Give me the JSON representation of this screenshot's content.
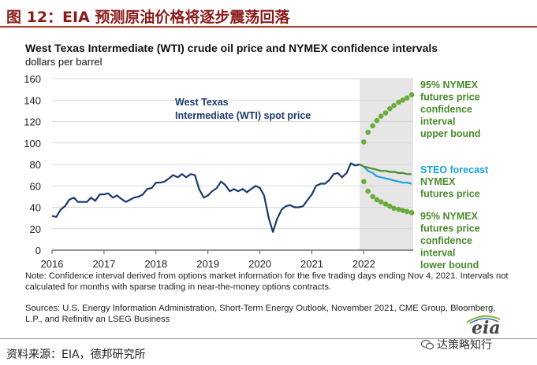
{
  "header": {
    "title": "图 12：EIA 预测原油价格将逐步震荡回落"
  },
  "chart_data": {
    "type": "line",
    "title": "West Texas Intermediate (WTI) crude oil price and NYMEX confidence intervals",
    "ylabel": "dollars per barrel",
    "ylim": [
      0,
      160
    ],
    "yticks": [
      0,
      20,
      40,
      60,
      80,
      100,
      120,
      140,
      160
    ],
    "xlim": [
      2016,
      2022.95
    ],
    "xticks": [
      2016,
      2017,
      2018,
      2019,
      2020,
      2021,
      2022
    ],
    "xtick_labels": [
      "2016",
      "2017",
      "2018",
      "2019",
      "2020",
      "2021",
      "2022"
    ],
    "forecast_start": 2021.92,
    "series": [
      {
        "name": "West Texas Intermediate (WTI) spot price",
        "color": "#1b3a6b",
        "style": "solid",
        "x": [
          2016.0,
          2016.08,
          2016.17,
          2016.25,
          2016.33,
          2016.42,
          2016.5,
          2016.58,
          2016.67,
          2016.75,
          2016.83,
          2016.92,
          2017.0,
          2017.08,
          2017.17,
          2017.25,
          2017.33,
          2017.42,
          2017.5,
          2017.58,
          2017.67,
          2017.75,
          2017.83,
          2017.92,
          2018.0,
          2018.08,
          2018.17,
          2018.25,
          2018.33,
          2018.42,
          2018.5,
          2018.58,
          2018.67,
          2018.75,
          2018.83,
          2018.92,
          2019.0,
          2019.08,
          2019.17,
          2019.25,
          2019.33,
          2019.42,
          2019.5,
          2019.58,
          2019.67,
          2019.75,
          2019.83,
          2019.92,
          2020.0,
          2020.08,
          2020.17,
          2020.25,
          2020.33,
          2020.42,
          2020.5,
          2020.58,
          2020.67,
          2020.75,
          2020.83,
          2020.92,
          2021.0,
          2021.08,
          2021.17,
          2021.25,
          2021.33,
          2021.42,
          2021.5,
          2021.58,
          2021.67,
          2021.75,
          2021.83,
          2021.92
        ],
        "values": [
          32,
          31,
          38,
          41,
          47,
          49,
          45,
          45,
          45,
          49,
          46,
          52,
          52,
          53,
          49,
          51,
          48,
          45,
          47,
          49,
          50,
          52,
          57,
          58,
          63,
          63,
          64,
          67,
          70,
          68,
          71,
          68,
          71,
          70,
          57,
          49,
          51,
          55,
          58,
          64,
          61,
          55,
          57,
          55,
          57,
          54,
          57,
          60,
          58,
          51,
          30,
          17,
          29,
          38,
          41,
          42,
          40,
          40,
          41,
          47,
          52,
          60,
          62,
          62,
          65,
          71,
          72,
          68,
          72,
          81,
          79,
          80
        ]
      },
      {
        "name": "STEO forecast",
        "color": "#1ba3dc",
        "style": "solid",
        "x": [
          2021.92,
          2022.0,
          2022.08,
          2022.17,
          2022.25,
          2022.33,
          2022.42,
          2022.5,
          2022.58,
          2022.67,
          2022.75,
          2022.83,
          2022.92
        ],
        "values": [
          80,
          78,
          74,
          72,
          69,
          68,
          67,
          66,
          65,
          64,
          63,
          63,
          62
        ]
      },
      {
        "name": "NYMEX futures price",
        "color": "#4a8a2a",
        "style": "solid",
        "x": [
          2021.92,
          2022.0,
          2022.08,
          2022.17,
          2022.25,
          2022.33,
          2022.42,
          2022.5,
          2022.58,
          2022.67,
          2022.75,
          2022.83,
          2022.92
        ],
        "values": [
          80,
          78,
          77,
          76,
          75,
          74,
          74,
          73,
          73,
          72,
          72,
          71,
          71
        ]
      },
      {
        "name": "95% NYMEX futures price confidence interval upper bound",
        "color": "#6aab3a",
        "style": "dotted",
        "x": [
          2022.0,
          2022.08,
          2022.17,
          2022.25,
          2022.33,
          2022.42,
          2022.5,
          2022.58,
          2022.67,
          2022.75,
          2022.83,
          2022.92
        ],
        "values": [
          101,
          110,
          116,
          121,
          125,
          128,
          132,
          135,
          138,
          140,
          142,
          145
        ]
      },
      {
        "name": "95% NYMEX futures price confidence interval lower bound",
        "color": "#6aab3a",
        "style": "dotted",
        "x": [
          2022.0,
          2022.08,
          2022.17,
          2022.25,
          2022.33,
          2022.42,
          2022.5,
          2022.58,
          2022.67,
          2022.75,
          2022.83,
          2022.92
        ],
        "values": [
          64,
          55,
          50,
          47,
          45,
          43,
          41,
          39,
          38,
          37,
          36,
          35
        ]
      }
    ],
    "annotations": {
      "wti": [
        "West Texas",
        "Intermediate (WTI) spot price"
      ],
      "upper": [
        "95% NYMEX",
        "futures price",
        "confidence",
        "interval",
        "upper bound"
      ],
      "steo": [
        "STEO forecast"
      ],
      "nymex": [
        "NYMEX",
        "futures price"
      ],
      "lower": [
        "95% NYMEX",
        "futures price",
        "confidence",
        "interval",
        "lower bound"
      ]
    }
  },
  "note": "Note: Confidence interval derived from options market information for the five trading days ending Nov 4, 2021. Intervals not calculated for months with sparse trading in near-the-money options contracts.",
  "sources": "Sources: U.S. Energy Information Administration, Short-Term Energy Outlook, November 2021, CME Group, Bloomberg, L.P., and Refinitiv an LSEG Business",
  "logo": {
    "text": "eia"
  },
  "footer": {
    "source": "资料来源：EIA，德邦研究所",
    "wechat": "达策略知行"
  },
  "colors": {
    "header_text": "#8b1a1a",
    "header_rule": "#b03a2e",
    "wti_line": "#1b3a6b",
    "steo_line": "#1ba3dc",
    "nymex_line": "#4a8a2a",
    "ci_dots": "#6aab3a",
    "forecast_shade": "#e6e6e6"
  }
}
